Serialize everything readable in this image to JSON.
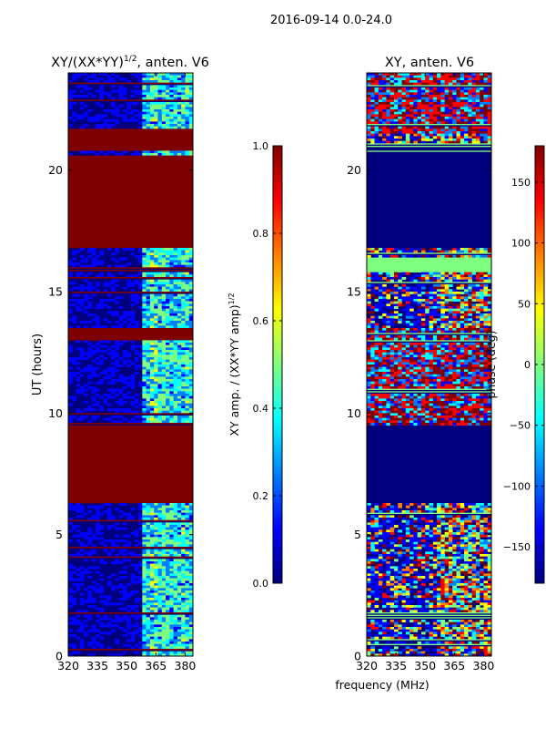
{
  "figure": {
    "suptitle": "2016-09-14 0.0-24.0"
  },
  "colors": {
    "jet": [
      "#00007f",
      "#0000ff",
      "#007fff",
      "#00ffff",
      "#7fff7f",
      "#ffff00",
      "#ff7f00",
      "#ff0000",
      "#7f0000"
    ]
  },
  "chart_data": [
    {
      "type": "heatmap",
      "title_main": "XY/(XX*YY)",
      "title_sup": "1/2",
      "title_tail": ", anten. V6",
      "xlabel": "",
      "ylabel": "UT (hours)",
      "xlim": [
        320,
        384
      ],
      "ylim": [
        0,
        24
      ],
      "xticks": [
        320,
        335,
        350,
        365,
        380
      ],
      "yticks": [
        0,
        5,
        10,
        15,
        20
      ],
      "colorbar": {
        "label_main": "XY amp. / (XX*YY amp)",
        "label_sup": "1/2",
        "range": [
          0.0,
          1.0
        ],
        "ticks": [
          "0.0",
          "0.2",
          "0.4",
          "0.6",
          "0.8",
          "1.0"
        ],
        "tick_values": [
          0.0,
          0.2,
          0.4,
          0.6,
          0.8,
          1.0
        ]
      },
      "saturated_hours": [
        [
          6.3,
          9.5
        ],
        [
          13.0,
          13.5
        ],
        [
          16.8,
          20.6
        ],
        [
          20.8,
          21.7
        ]
      ]
    },
    {
      "type": "heatmap",
      "title": "XY, anten. V6",
      "xlabel": "frequency (MHz)",
      "ylabel": "",
      "xlim": [
        320,
        384
      ],
      "ylim": [
        0,
        24
      ],
      "xticks": [
        320,
        335,
        350,
        365,
        380
      ],
      "yticks": [
        0,
        5,
        10,
        15,
        20
      ],
      "colorbar": {
        "label": "phase (deg)",
        "range": [
          -180,
          180
        ],
        "ticks": [
          "150",
          "100",
          "50",
          "0",
          "−50",
          "−100",
          "−150"
        ],
        "tick_values": [
          150,
          100,
          50,
          0,
          -50,
          -100,
          -150
        ]
      },
      "blank_hours": [
        [
          6.3,
          9.5
        ],
        [
          16.8,
          21.0
        ]
      ],
      "green_band_hours": [
        15.8,
        16.4
      ]
    }
  ]
}
